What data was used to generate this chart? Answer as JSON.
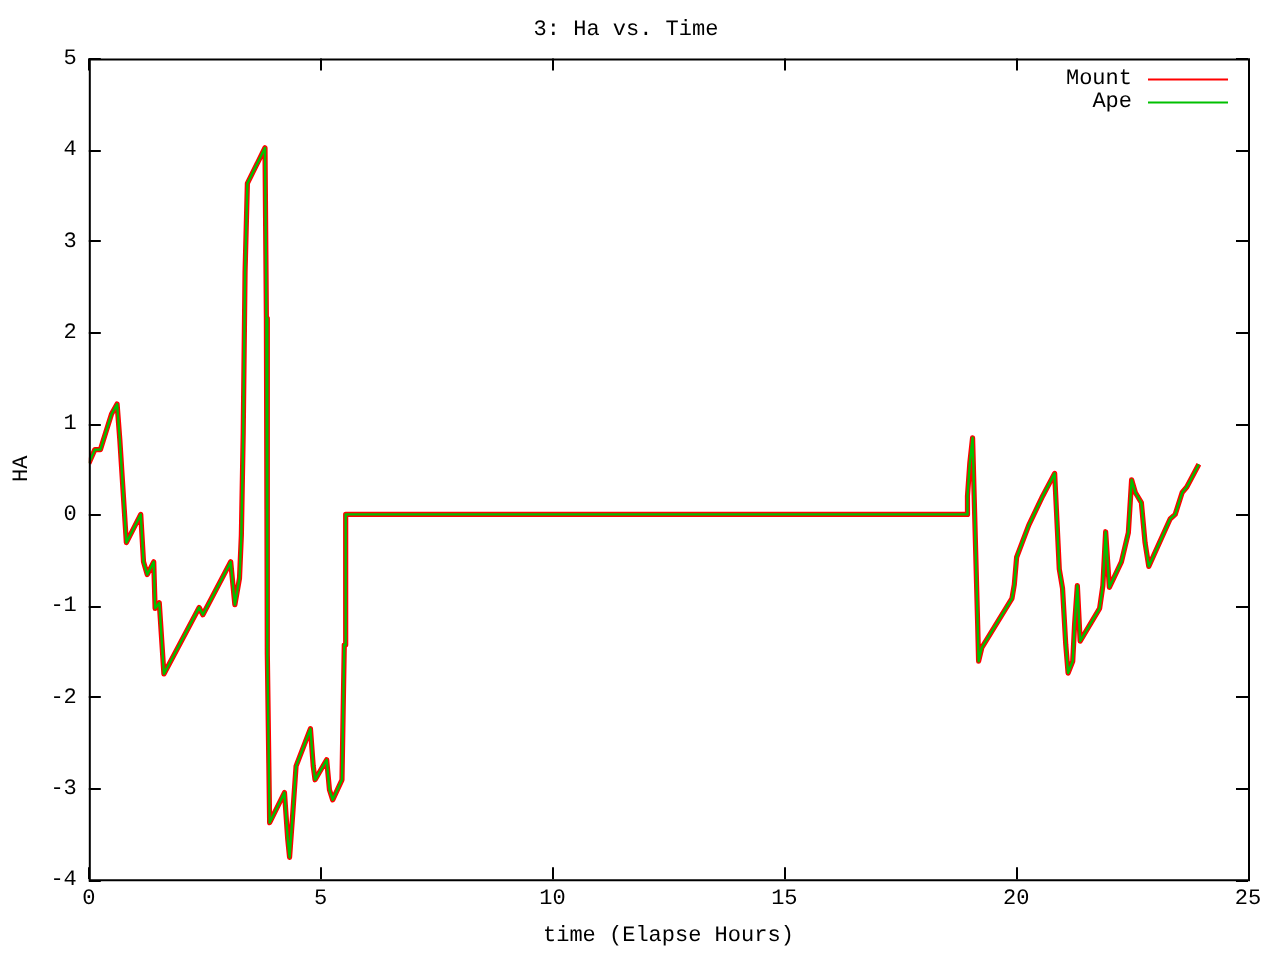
{
  "chart_data": {
    "type": "line",
    "title": "3: Ha vs. Time",
    "xlabel": "time (Elapse Hours)",
    "ylabel": "HA",
    "x": [
      0,
      0.13,
      0.25,
      0.49,
      0.61,
      0.67,
      0.81,
      1.12,
      1.18,
      1.26,
      1.4,
      1.43,
      1.52,
      1.62,
      2.38,
      2.46,
      3.06,
      3.15,
      3.25,
      3.29,
      3.33,
      3.37,
      3.42,
      3.8,
      3.83,
      3.85,
      3.9,
      4.22,
      4.29,
      4.33,
      4.4,
      4.47,
      4.78,
      4.84,
      4.88,
      5.13,
      5.19,
      5.26,
      5.46,
      5.51,
      5.54,
      18.94,
      18.95,
      19.0,
      19.06,
      19.17,
      19.19,
      19.26,
      19.91,
      19.96,
      20.01,
      20.27,
      20.57,
      20.83,
      20.93,
      21.0,
      21.07,
      21.12,
      21.22,
      21.26,
      21.32,
      21.38,
      21.8,
      21.87,
      21.93,
      22.01,
      22.27,
      22.42,
      22.49,
      22.57,
      22.7,
      22.78,
      22.86,
      23.32,
      23.43,
      23.58,
      23.68,
      23.94
    ],
    "series": [
      {
        "name": "Mount",
        "color": "#ff0000",
        "values": [
          0.56,
          0.71,
          0.71,
          1.1,
          1.21,
          0.81,
          -0.31,
          0.0,
          -0.52,
          -0.66,
          -0.52,
          -1.03,
          -0.97,
          -1.75,
          -1.02,
          -1.1,
          -0.52,
          -0.99,
          -0.7,
          -0.23,
          0.89,
          2.66,
          3.63,
          4.02,
          2.15,
          -1.53,
          -3.38,
          -3.05,
          -3.56,
          -3.76,
          -3.27,
          -2.76,
          -2.35,
          -2.76,
          -2.91,
          -2.69,
          -3.02,
          -3.13,
          -2.91,
          -1.43,
          0,
          0,
          0.2,
          0.56,
          0.84,
          -1.21,
          -1.61,
          -1.46,
          -0.92,
          -0.77,
          -0.47,
          -0.12,
          0.2,
          0.45,
          -0.6,
          -0.81,
          -1.43,
          -1.74,
          -1.61,
          -1.21,
          -0.78,
          -1.39,
          -1.03,
          -0.78,
          -0.19,
          -0.8,
          -0.52,
          -0.2,
          0.38,
          0.24,
          0.13,
          -0.31,
          -0.57,
          -0.05,
          0.0,
          0.24,
          0.3,
          0.55
        ]
      },
      {
        "name": "Ape",
        "color": "#00c000",
        "values": [
          0.56,
          0.71,
          0.71,
          1.1,
          1.21,
          0.81,
          -0.31,
          0.0,
          -0.52,
          -0.66,
          -0.52,
          -1.03,
          -0.97,
          -1.75,
          -1.02,
          -1.1,
          -0.52,
          -0.99,
          -0.7,
          -0.23,
          0.89,
          2.66,
          3.63,
          4.02,
          2.15,
          -1.53,
          -3.38,
          -3.05,
          -3.56,
          -3.76,
          -3.27,
          -2.76,
          -2.35,
          -2.76,
          -2.91,
          -2.69,
          -3.02,
          -3.13,
          -2.91,
          -1.43,
          0,
          0,
          0.2,
          0.56,
          0.84,
          -1.21,
          -1.61,
          -1.46,
          -0.92,
          -0.77,
          -0.47,
          -0.12,
          0.2,
          0.45,
          -0.6,
          -0.81,
          -1.43,
          -1.74,
          -1.61,
          -1.21,
          -0.78,
          -1.39,
          -1.03,
          -0.78,
          -0.19,
          -0.8,
          -0.52,
          -0.2,
          0.38,
          0.24,
          0.13,
          -0.31,
          -0.57,
          -0.05,
          0.0,
          0.24,
          0.3,
          0.55
        ]
      }
    ],
    "xlim": [
      0,
      25
    ],
    "xticks": [
      0,
      5,
      10,
      15,
      20,
      25
    ],
    "ylim": [
      -4,
      5
    ],
    "yticks": [
      -4,
      -3,
      -2,
      -1,
      0,
      1,
      2,
      3,
      4,
      5
    ],
    "grid": false,
    "legend": "top right",
    "marker": "none",
    "line_style": "solid"
  }
}
